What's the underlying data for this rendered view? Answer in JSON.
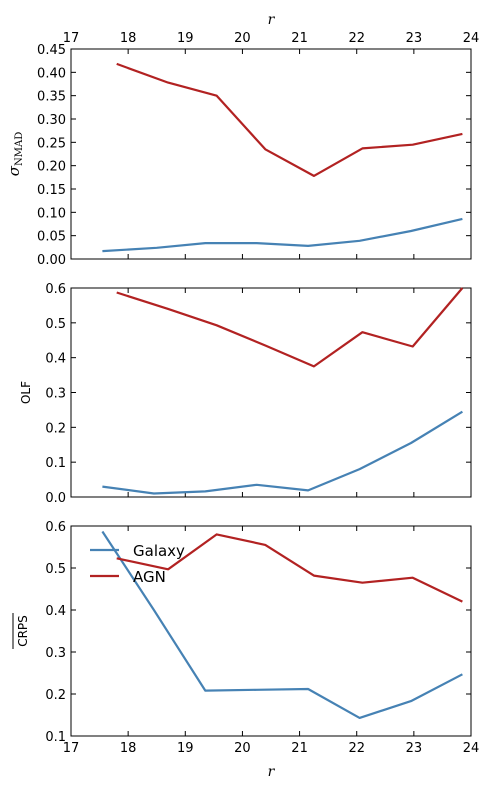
{
  "top_axis": {
    "label": "r",
    "ticks": [
      "17",
      "18",
      "19",
      "20",
      "21",
      "22",
      "23",
      "24"
    ],
    "values": [
      17,
      18,
      19,
      20,
      21,
      22,
      23,
      24
    ]
  },
  "bottom_axis": {
    "label": "r",
    "ticks": [
      "17",
      "18",
      "19",
      "20",
      "21",
      "22",
      "23",
      "24"
    ],
    "values": [
      17,
      18,
      19,
      20,
      21,
      22,
      23,
      24
    ]
  },
  "colors": {
    "galaxy": "#4682b4",
    "agn": "#b22222"
  },
  "chart_data": [
    {
      "type": "line",
      "id": "sigma",
      "ylabel": "σ",
      "ylabel_sub": "NMAD",
      "xlim": [
        17,
        24
      ],
      "ylim": [
        0,
        0.45
      ],
      "yticks": [
        0,
        0.05,
        0.1,
        0.15,
        0.2,
        0.25,
        0.3,
        0.35,
        0.4,
        0.45
      ],
      "ytick_labels": [
        "0.00",
        "0.05",
        "0.10",
        "0.15",
        "0.20",
        "0.25",
        "0.30",
        "0.35",
        "0.40",
        "0.45"
      ],
      "series": [
        {
          "key": "galaxy",
          "x": [
            17.55,
            18.5,
            19.35,
            20.25,
            21.15,
            22.05,
            22.95,
            23.85
          ],
          "y": [
            0.017,
            0.024,
            0.034,
            0.034,
            0.028,
            0.039,
            0.06,
            0.086
          ]
        },
        {
          "key": "agn",
          "x": [
            17.8,
            18.7,
            19.55,
            20.4,
            21.25,
            22.1,
            22.98,
            23.85
          ],
          "y": [
            0.418,
            0.378,
            0.35,
            0.235,
            0.178,
            0.237,
            0.245,
            0.268
          ]
        }
      ]
    },
    {
      "type": "line",
      "id": "olf",
      "ylabel": "OLF",
      "xlim": [
        17,
        24
      ],
      "ylim": [
        0,
        0.6
      ],
      "yticks": [
        0,
        0.1,
        0.2,
        0.3,
        0.4,
        0.5,
        0.6
      ],
      "ytick_labels": [
        "0.0",
        "0.1",
        "0.2",
        "0.3",
        "0.4",
        "0.5",
        "0.6"
      ],
      "series": [
        {
          "key": "galaxy",
          "x": [
            17.55,
            18.45,
            19.35,
            20.25,
            21.15,
            22.05,
            22.95,
            23.85
          ],
          "y": [
            0.03,
            0.01,
            0.016,
            0.035,
            0.019,
            0.08,
            0.155,
            0.245
          ]
        },
        {
          "key": "agn",
          "x": [
            17.8,
            18.7,
            19.55,
            20.4,
            21.25,
            22.1,
            22.98,
            23.85
          ],
          "y": [
            0.587,
            0.54,
            0.493,
            0.435,
            0.375,
            0.473,
            0.432,
            0.6
          ]
        }
      ]
    },
    {
      "type": "line",
      "id": "crps",
      "ylabel": "CRPS",
      "xlim": [
        17,
        24
      ],
      "ylim": [
        0.1,
        0.6
      ],
      "yticks": [
        0.1,
        0.2,
        0.3,
        0.4,
        0.5,
        0.6
      ],
      "ytick_labels": [
        "0.1",
        "0.2",
        "0.3",
        "0.4",
        "0.5",
        "0.6"
      ],
      "legend": {
        "placement": "upper-left",
        "entries": [
          {
            "key": "galaxy",
            "label": "Galaxy"
          },
          {
            "key": "agn",
            "label": "AGN"
          }
        ]
      },
      "series": [
        {
          "key": "galaxy",
          "x": [
            17.55,
            18.45,
            19.35,
            20.25,
            21.15,
            22.05,
            22.95,
            23.85
          ],
          "y": [
            0.587,
            0.4,
            0.208,
            0.21,
            0.212,
            0.143,
            0.183,
            0.247
          ]
        },
        {
          "key": "agn",
          "x": [
            17.8,
            18.7,
            19.55,
            20.4,
            21.25,
            22.1,
            22.98,
            23.85
          ],
          "y": [
            0.523,
            0.497,
            0.58,
            0.555,
            0.482,
            0.465,
            0.477,
            0.42
          ]
        }
      ]
    }
  ]
}
